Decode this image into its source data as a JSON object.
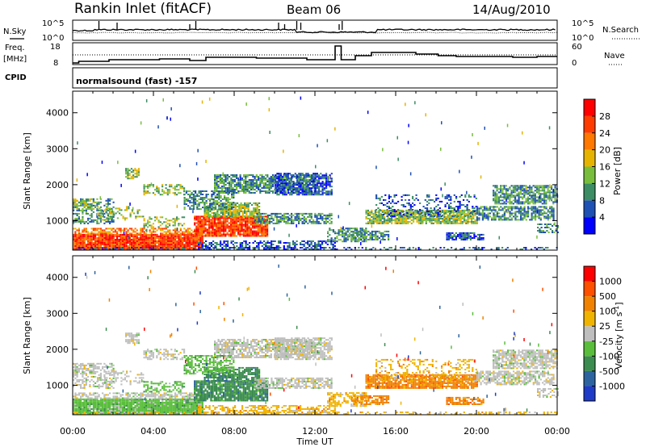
{
  "header": {
    "station": "Rankin Inlet (fitACF)",
    "beam": "Beam 06",
    "date": "14/Aug/2010"
  },
  "strips": {
    "nsky_label": "N.Sky",
    "nsky_top": "10^5",
    "nsky_bottom": "10^0",
    "nsearch_label": "N.Search",
    "nsearch_top": "10^5",
    "nsearch_bottom": "10^0",
    "freq_label": "Freq.",
    "freq_unit": "[MHz]",
    "freq_top": "18",
    "freq_bottom": "8",
    "nave_label": "Nave",
    "nave_top": "60",
    "nave_bottom": "0",
    "cpid_label": "CPID",
    "cpid_text": "normalsound (fast) -157"
  },
  "chart_data": [
    {
      "type": "heatmap",
      "name": "power",
      "ylabel": "Slant Range [km]",
      "yticks": [
        "1000",
        "2000",
        "3000",
        "4000"
      ],
      "ylim": [
        180,
        4600
      ],
      "xticks": [
        "00:00",
        "04:00",
        "08:00",
        "12:00",
        "16:00",
        "20:00",
        "00:00"
      ],
      "xlim_hours": [
        0,
        24
      ],
      "colorbar": {
        "label": "Power [dB]",
        "ticks": [
          "4",
          "8",
          "12",
          "16",
          "20",
          "24",
          "28"
        ],
        "colors": [
          "#0000ff",
          "#1f50b4",
          "#3c8c64",
          "#78be3c",
          "#e6b400",
          "#ff7800",
          "#ff3c00",
          "#ff0000"
        ]
      }
    },
    {
      "type": "heatmap",
      "name": "velocity",
      "ylabel": "Slant Range [km]",
      "yticks": [
        "1000",
        "2000",
        "3000",
        "4000"
      ],
      "ylim": [
        180,
        4600
      ],
      "xticks": [
        "00:00",
        "04:00",
        "08:00",
        "12:00",
        "16:00",
        "20:00",
        "00:00"
      ],
      "xlim_hours": [
        0,
        24
      ],
      "xlabel": "Time UT",
      "colorbar": {
        "label": "Velocity [m s^-1]",
        "ticks": [
          "1000",
          "500",
          "100",
          "25",
          "-25",
          "-100",
          "-500",
          "-1000"
        ],
        "colors": [
          "#1e3cc8",
          "#2d64a0",
          "#3c8c50",
          "#5abe3c",
          "#bebebe",
          "#f0b400",
          "#f08200",
          "#ff5000",
          "#ff0000"
        ]
      }
    }
  ]
}
